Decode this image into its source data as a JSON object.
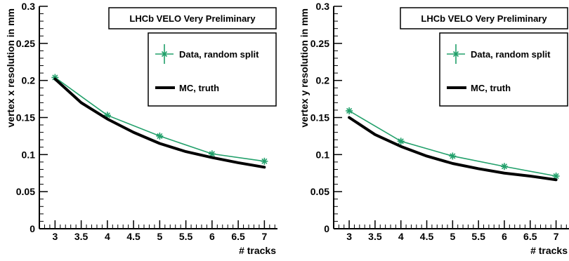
{
  "chart_data": [
    {
      "type": "line",
      "title": "LHCb VELO Very Preliminary",
      "xlabel": "# tracks",
      "ylabel": "vertex x resolution in mm",
      "xlim": [
        2.7,
        7.25
      ],
      "ylim": [
        0,
        0.3
      ],
      "xticks": [
        "3",
        "3.5",
        "4",
        "4.5",
        "5",
        "5.5",
        "6",
        "6.5",
        "7"
      ],
      "yticks": [
        "0",
        "0.05",
        "0.1",
        "0.15",
        "0.2",
        "0.25",
        "0.3"
      ],
      "legend_position": "top-right",
      "grid": false,
      "series": [
        {
          "name": "Data, random split",
          "color": "#22a06b",
          "marker": "star",
          "x": [
            3,
            4,
            5,
            6,
            7
          ],
          "values": [
            0.204,
            0.153,
            0.125,
            0.101,
            0.091
          ]
        },
        {
          "name": "MC, truth",
          "color": "#000000",
          "marker": "none",
          "curve": true,
          "x": [
            3,
            3.5,
            4,
            4.5,
            5,
            5.5,
            6,
            6.5,
            7
          ],
          "values": [
            0.202,
            0.17,
            0.148,
            0.13,
            0.115,
            0.104,
            0.096,
            0.089,
            0.083
          ]
        }
      ]
    },
    {
      "type": "line",
      "title": "LHCb VELO Very Preliminary",
      "xlabel": "# tracks",
      "ylabel": "vertex y resolution in mm",
      "xlim": [
        2.7,
        7.25
      ],
      "ylim": [
        0,
        0.3
      ],
      "xticks": [
        "3",
        "3.5",
        "4",
        "4.5",
        "5",
        "5.5",
        "6",
        "6.5",
        "7"
      ],
      "yticks": [
        "0",
        "0.05",
        "0.1",
        "0.15",
        "0.2",
        "0.25",
        "0.3"
      ],
      "legend_position": "top-right",
      "grid": false,
      "series": [
        {
          "name": "Data, random split",
          "color": "#22a06b",
          "marker": "star",
          "x": [
            3,
            4,
            5,
            6,
            7
          ],
          "values": [
            0.159,
            0.118,
            0.098,
            0.084,
            0.071
          ]
        },
        {
          "name": "MC, truth",
          "color": "#000000",
          "marker": "none",
          "curve": true,
          "x": [
            3,
            3.5,
            4,
            4.5,
            5,
            5.5,
            6,
            6.5,
            7
          ],
          "values": [
            0.15,
            0.127,
            0.111,
            0.098,
            0.088,
            0.081,
            0.075,
            0.071,
            0.066
          ]
        }
      ]
    }
  ]
}
